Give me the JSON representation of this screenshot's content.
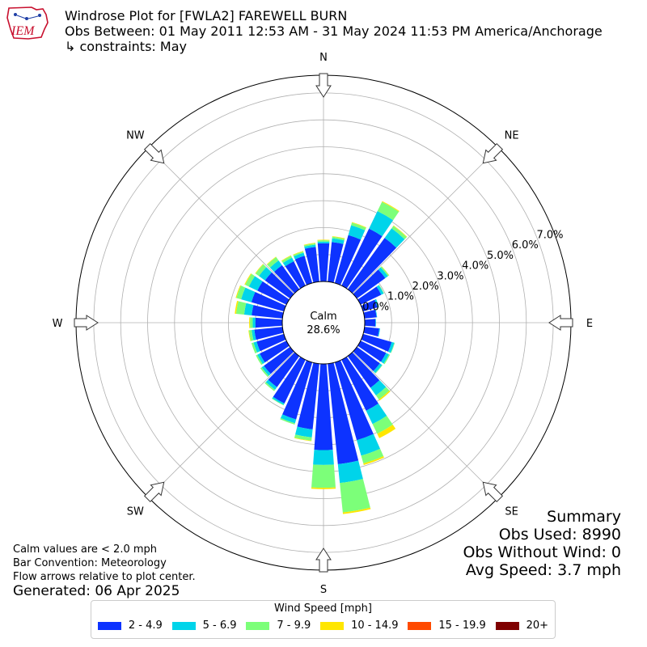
{
  "logo_text": "IEM",
  "title": {
    "line1": "Windrose Plot for [FWLA2] FAREWELL BURN",
    "line2": "Obs Between: 01 May 2011 12:53 AM - 31 May 2024 11:53 PM America/Anchorage",
    "line3": "↳ constraints: May"
  },
  "notes": {
    "calm_note": "Calm values are < 2.0 mph",
    "convention": "Bar Convention: Meteorology",
    "flow": "Flow arrows relative to plot center.",
    "generated": "Generated: 06 Apr 2025"
  },
  "summary": {
    "heading": "Summary",
    "obs_used": "Obs Used: 8990",
    "obs_without_wind": "Obs Without Wind: 0",
    "avg_speed": "Avg Speed: 3.7 mph"
  },
  "chart_data": {
    "type": "windrose",
    "calm_label": "Calm",
    "calm_value": "28.6%",
    "directions": [
      "N",
      "NE",
      "E",
      "SE",
      "S",
      "SW",
      "W",
      "NW"
    ],
    "radial_ticks": [
      "0.0%",
      "1.0%",
      "2.0%",
      "3.0%",
      "4.0%",
      "5.0%",
      "6.0%",
      "7.0%"
    ],
    "rmax": 7.0,
    "legend_title": "Wind Speed [mph]",
    "bins": [
      {
        "label": "2 - 4.9",
        "color": "#0d33ff"
      },
      {
        "label": "5 - 6.9",
        "color": "#00d4ea"
      },
      {
        "label": "7 - 9.9",
        "color": "#7cff79"
      },
      {
        "label": "10 - 14.9",
        "color": "#ffe600"
      },
      {
        "label": "15 - 19.9",
        "color": "#ff4a00"
      },
      {
        "label": "20+",
        "color": "#7f0000"
      }
    ],
    "sectors": [
      {
        "dir": 0,
        "values": [
          1.42,
          0.06,
          0.05,
          0.02,
          0,
          0
        ]
      },
      {
        "dir": 10,
        "values": [
          1.48,
          0.14,
          0.06,
          0.02,
          0,
          0
        ]
      },
      {
        "dir": 20,
        "values": [
          1.85,
          0.38,
          0.1,
          0.02,
          0,
          0
        ]
      },
      {
        "dir": 30,
        "values": [
          2.35,
          0.72,
          0.38,
          0.03,
          0,
          0
        ]
      },
      {
        "dir": 40,
        "values": [
          2.35,
          0.44,
          0.11,
          0.02,
          0,
          0
        ]
      },
      {
        "dir": 50,
        "values": [
          1.3,
          0.12,
          0.05,
          0.01,
          0,
          0
        ]
      },
      {
        "dir": 60,
        "values": [
          0.85,
          0.1,
          0.02,
          0,
          0,
          0
        ]
      },
      {
        "dir": 70,
        "values": [
          0.55,
          0.06,
          0,
          0,
          0,
          0
        ]
      },
      {
        "dir": 80,
        "values": [
          0.45,
          0.02,
          0,
          0,
          0,
          0
        ]
      },
      {
        "dir": 90,
        "values": [
          0.4,
          0.02,
          0,
          0,
          0,
          0
        ]
      },
      {
        "dir": 100,
        "values": [
          0.55,
          0.03,
          0,
          0,
          0,
          0
        ]
      },
      {
        "dir": 110,
        "values": [
          1.1,
          0.1,
          0.02,
          0,
          0,
          0
        ]
      },
      {
        "dir": 120,
        "values": [
          1.05,
          0.12,
          0.04,
          0,
          0,
          0
        ]
      },
      {
        "dir": 130,
        "values": [
          1.05,
          0.1,
          0.02,
          0,
          0,
          0
        ]
      },
      {
        "dir": 140,
        "values": [
          1.45,
          0.35,
          0.18,
          0.05,
          0,
          0
        ]
      },
      {
        "dir": 150,
        "values": [
          2.1,
          0.55,
          0.4,
          0.18,
          0,
          0
        ]
      },
      {
        "dir": 160,
        "values": [
          3.0,
          0.6,
          0.3,
          0.06,
          0,
          0
        ]
      },
      {
        "dir": 170,
        "values": [
          3.75,
          0.7,
          1.1,
          0.06,
          0,
          0
        ]
      },
      {
        "dir": 180,
        "values": [
          3.2,
          0.55,
          0.85,
          0.05,
          0,
          0
        ]
      },
      {
        "dir": 190,
        "values": [
          2.45,
          0.3,
          0.12,
          0.02,
          0,
          0
        ]
      },
      {
        "dir": 200,
        "values": [
          2.2,
          0.15,
          0.05,
          0,
          0,
          0
        ]
      },
      {
        "dir": 210,
        "values": [
          1.8,
          0.06,
          0.02,
          0,
          0,
          0
        ]
      },
      {
        "dir": 220,
        "values": [
          1.42,
          0.12,
          0.06,
          0,
          0,
          0
        ]
      },
      {
        "dir": 230,
        "values": [
          1.2,
          0.1,
          0.06,
          0,
          0,
          0
        ]
      },
      {
        "dir": 240,
        "values": [
          1.1,
          0.1,
          0.06,
          0,
          0,
          0
        ]
      },
      {
        "dir": 250,
        "values": [
          1.05,
          0.12,
          0.08,
          0,
          0,
          0
        ]
      },
      {
        "dir": 260,
        "values": [
          1.05,
          0.1,
          0.1,
          0.02,
          0,
          0
        ]
      },
      {
        "dir": 270,
        "values": [
          1.0,
          0.1,
          0.1,
          0.03,
          0,
          0
        ]
      },
      {
        "dir": 280,
        "values": [
          1.15,
          0.28,
          0.3,
          0.05,
          0,
          0
        ]
      },
      {
        "dir": 290,
        "values": [
          1.25,
          0.4,
          0.18,
          0.03,
          0,
          0
        ]
      },
      {
        "dir": 300,
        "values": [
          1.2,
          0.35,
          0.15,
          0.03,
          0,
          0
        ]
      },
      {
        "dir": 310,
        "values": [
          1.15,
          0.28,
          0.15,
          0.02,
          0,
          0
        ]
      },
      {
        "dir": 320,
        "values": [
          1.1,
          0.22,
          0.15,
          0.02,
          0,
          0
        ]
      },
      {
        "dir": 330,
        "values": [
          1.0,
          0.15,
          0.08,
          0.02,
          0,
          0
        ]
      },
      {
        "dir": 340,
        "values": [
          1.05,
          0.12,
          0.05,
          0.02,
          0,
          0
        ]
      },
      {
        "dir": 350,
        "values": [
          1.3,
          0.08,
          0.05,
          0.02,
          0,
          0
        ]
      }
    ]
  }
}
